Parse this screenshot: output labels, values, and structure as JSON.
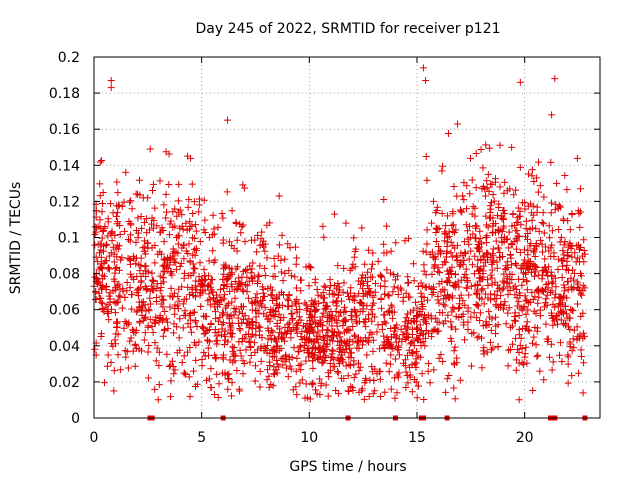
{
  "chart_data": {
    "type": "scatter",
    "title": "Day 245 of 2022, SRMTID for receiver p121",
    "xlabel": "GPS time / hours",
    "ylabel": "SRMTID / TECUs",
    "xlim": [
      0,
      23.5
    ],
    "ylim": [
      0,
      0.2
    ],
    "x_ticks": [
      0,
      5,
      10,
      15,
      20
    ],
    "x_tick_labels": [
      "0",
      "5",
      "10",
      "15",
      "20"
    ],
    "y_ticks": [
      0,
      0.02,
      0.04,
      0.06,
      0.08,
      0.1,
      0.12,
      0.14,
      0.16,
      0.18,
      0.2
    ],
    "y_tick_labels": [
      "0",
      "0.02",
      "0.04",
      "0.06",
      "0.08",
      "0.1",
      "0.12",
      "0.14",
      "0.16",
      "0.18",
      "0.2"
    ],
    "grid": true,
    "marker": "+",
    "color": "#e00000",
    "series": [
      {
        "name": "SRMTID",
        "profile_description": "dense cloud of points; approximate per-hour envelope listed",
        "hourly_center": [
          0.085,
          0.075,
          0.08,
          0.07,
          0.075,
          0.065,
          0.06,
          0.06,
          0.055,
          0.05,
          0.045,
          0.045,
          0.05,
          0.055,
          0.05,
          0.05,
          0.08,
          0.08,
          0.085,
          0.085,
          0.08,
          0.075,
          0.07,
          0.075
        ],
        "hourly_spread": [
          0.025,
          0.03,
          0.03,
          0.03,
          0.03,
          0.025,
          0.025,
          0.025,
          0.02,
          0.02,
          0.018,
          0.018,
          0.02,
          0.025,
          0.02,
          0.02,
          0.03,
          0.03,
          0.03,
          0.03,
          0.03,
          0.03,
          0.03,
          0.03
        ],
        "notable_points": [
          {
            "x": 0.8,
            "y": 0.187
          },
          {
            "x": 0.8,
            "y": 0.183
          },
          {
            "x": 6.2,
            "y": 0.165
          },
          {
            "x": 8.6,
            "y": 0.123
          },
          {
            "x": 15.3,
            "y": 0.194
          },
          {
            "x": 15.4,
            "y": 0.187
          },
          {
            "x": 19.8,
            "y": 0.186
          },
          {
            "x": 21.4,
            "y": 0.188
          },
          {
            "x": 9.8,
            "y": 0.011
          },
          {
            "x": 5.6,
            "y": 0.013
          }
        ],
        "zero_points_x": [
          2.6,
          2.7,
          6.0,
          11.8,
          14.0,
          15.2,
          15.3,
          16.4,
          21.2,
          21.3,
          21.4,
          22.8
        ]
      }
    ]
  }
}
